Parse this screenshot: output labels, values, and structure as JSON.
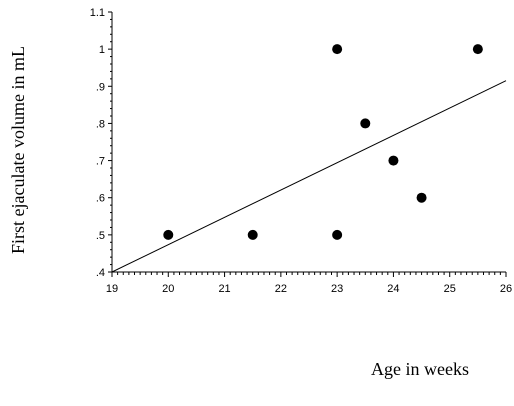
{
  "chart_data": {
    "type": "scatter",
    "title": "",
    "xlabel": "Age in weeks",
    "ylabel": "First ejaculate volume in mL",
    "xlim": [
      19,
      26
    ],
    "ylim": [
      0.4,
      1.1
    ],
    "x_ticks": [
      19,
      20,
      21,
      22,
      23,
      24,
      25,
      26
    ],
    "x_tick_labels": [
      "19",
      "20",
      "21",
      "22",
      "23",
      "24",
      "25",
      "26"
    ],
    "y_ticks": [
      0.4,
      0.5,
      0.6,
      0.7,
      0.8,
      0.9,
      1.0,
      1.1
    ],
    "y_tick_labels": [
      ".4",
      ".5",
      ".6",
      ".7",
      ".8",
      ".9",
      "1",
      "1.1"
    ],
    "grid": false,
    "legend": "none",
    "series": [
      {
        "points": [
          {
            "x": 20,
            "y": 0.5
          },
          {
            "x": 21.5,
            "y": 0.5
          },
          {
            "x": 23,
            "y": 1.0
          },
          {
            "x": 23,
            "y": 0.5
          },
          {
            "x": 23.5,
            "y": 0.8
          },
          {
            "x": 24,
            "y": 0.7
          },
          {
            "x": 24.5,
            "y": 0.6
          },
          {
            "x": 25.5,
            "y": 1.0
          }
        ]
      }
    ],
    "trendline": {
      "x": [
        19,
        26
      ],
      "y": [
        0.4,
        0.915
      ]
    }
  }
}
